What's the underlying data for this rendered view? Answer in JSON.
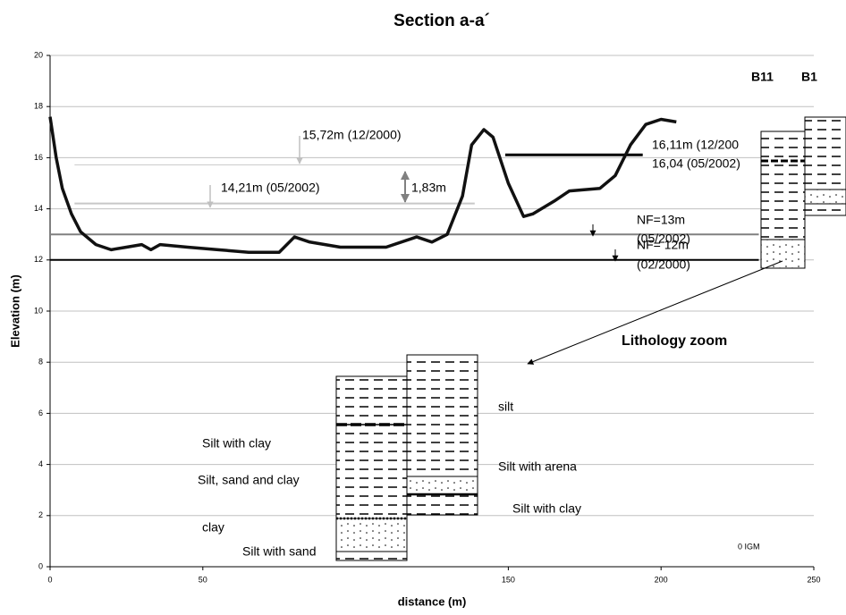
{
  "chart_data": {
    "type": "line",
    "title": "Section a-a´",
    "x_label": "distance (m)",
    "y_label": "Elevation (m)",
    "xlim": [
      0,
      250
    ],
    "xticks": [
      0,
      50,
      150,
      200,
      250
    ],
    "ylim": [
      0,
      20
    ],
    "yticks": [
      0,
      2,
      4,
      6,
      8,
      10,
      12,
      14,
      16,
      18,
      20
    ],
    "grid": true,
    "series": [
      {
        "color": "#111111",
        "x": [
          0,
          2,
          4,
          7,
          10,
          15,
          20,
          25,
          30,
          33,
          36,
          45,
          55,
          65,
          75,
          80,
          85,
          95,
          110,
          120,
          125,
          130,
          135,
          138,
          142,
          145,
          150,
          155,
          158,
          165,
          170,
          180,
          185,
          190,
          195,
          200,
          205
        ],
        "values": [
          17.6,
          16,
          14.8,
          13.8,
          13.1,
          12.6,
          12.4,
          12.5,
          12.6,
          12.4,
          12.6,
          12.5,
          12.4,
          12.3,
          12.3,
          12.9,
          12.7,
          12.5,
          12.5,
          12.9,
          12.7,
          13.0,
          14.5,
          16.5,
          17.1,
          16.8,
          15.0,
          13.7,
          13.8,
          14.3,
          14.7,
          14.8,
          15.3,
          16.5,
          17.3,
          17.5,
          17.4
        ]
      }
    ],
    "levels": [
      {
        "value": 12,
        "from": 0,
        "to": 232,
        "color": "#000000",
        "line_width": 2
      },
      {
        "value": 13,
        "from": 0,
        "to": 232,
        "color": "#808080",
        "line_width": 2
      },
      {
        "value": 14.21,
        "from": 8,
        "to": 139,
        "color": "#c8c8c8",
        "line_width": 2
      },
      {
        "value": 15.72,
        "from": 8,
        "to": 136,
        "color": "#c8c8c8",
        "line_width": 1
      },
      {
        "value": 16.11,
        "from": 149,
        "to": 194,
        "color": "#000000",
        "line_width": 3
      }
    ],
    "annotations": [
      "15,72m (12/2000)",
      "14,21m (05/2002)",
      "1,83m",
      "NF=13m",
      "(05/2002)",
      "NF= 12m",
      "(02/2000)",
      "16,11m (12/200",
      "16,04 (05/2002)",
      "B11",
      "B1",
      "Lithology zoom",
      "0 IGM",
      "Silt with clay",
      "Silt, sand and clay",
      "clay",
      "Silt with sand",
      "silt",
      "Silt with arena",
      "Silt with clay"
    ]
  }
}
